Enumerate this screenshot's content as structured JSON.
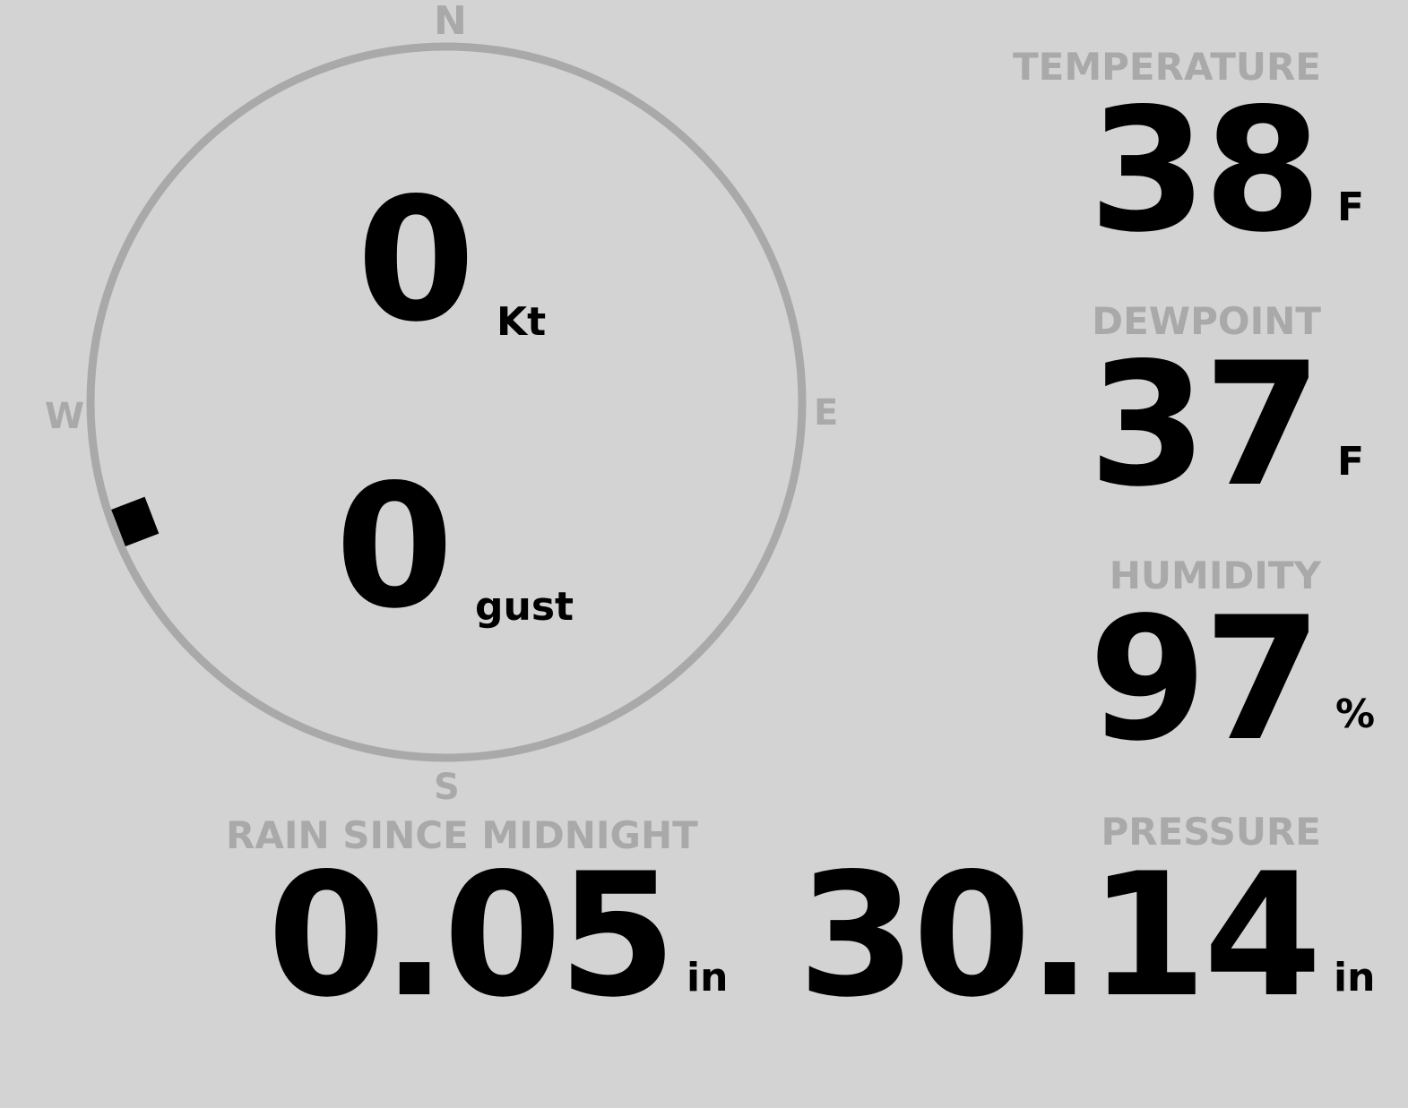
{
  "wind": {
    "speed": "0",
    "speed_unit": "Kt",
    "gust": "0",
    "gust_unit": "gust",
    "direction_deg": 249,
    "cardinals": {
      "n": "N",
      "e": "E",
      "s": "S",
      "w": "W"
    }
  },
  "temperature": {
    "label": "TEMPERATURE",
    "value": "38",
    "unit": "F"
  },
  "dewpoint": {
    "label": "DEWPOINT",
    "value": "37",
    "unit": "F"
  },
  "humidity": {
    "label": "HUMIDITY",
    "value": "97",
    "unit": "%"
  },
  "rain": {
    "label": "RAIN SINCE MIDNIGHT",
    "value": "0.05",
    "unit": "in"
  },
  "pressure": {
    "label": "PRESSURE",
    "value": "30.14",
    "unit": "in"
  },
  "colors": {
    "background": "#d3d3d3",
    "label": "#a9a9a9",
    "value": "#000000"
  }
}
